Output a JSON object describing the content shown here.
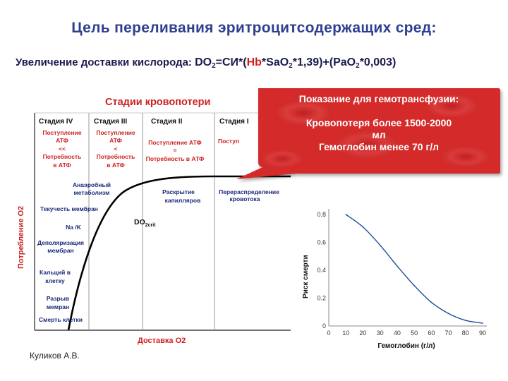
{
  "slide": {
    "title": "Цель переливания эритроцитсодержащих сред:",
    "formula": {
      "prefix": "Увеличение доставки кислорода: ",
      "do": "DO",
      "do_sub": "2",
      "eq1": "=СИ*(",
      "hb": "Hb",
      "sao": "*SaO",
      "sao_sub": "2",
      "mid": "*1,39)+(PaO",
      "pao_sub": "2",
      "tail": "*0,003)"
    },
    "author": "Куликов А.В."
  },
  "left_chart": {
    "title": "Стадии кровопотери",
    "stages": [
      "Стадия IV",
      "Стадия III",
      "Стадия II",
      "Стадия I"
    ],
    "stage_notes": [
      [
        "Поступление",
        "АТФ",
        "<<",
        "Потребность",
        "в АТФ"
      ],
      [
        "Поступление",
        "АТФ",
        "<",
        "Потребность",
        "в АТФ"
      ],
      [
        "Поступление АТФ",
        "=",
        "Потребность в АТФ"
      ],
      [
        "Поступ"
      ]
    ],
    "events_left": [
      [
        "Анаэробный",
        "метаболизм"
      ],
      [
        "Текучесть мембран"
      ],
      [
        "Na /K"
      ],
      [
        "Деполяризация",
        "мембран"
      ],
      [
        "Кальций в",
        "клетку"
      ],
      [
        "Разрыв",
        "мемран"
      ],
      [
        "Смерть клетки"
      ]
    ],
    "events_mid": [
      "Раскрытие",
      "капилляров"
    ],
    "events_right": [
      "Перераспределение",
      "кровотока"
    ],
    "crit_label": "DO",
    "crit_sub": "2crit",
    "ylabel": "Потребление О2",
    "xlabel": "Доставка О2",
    "colors": {
      "accent": "#cc2222",
      "curve": "#000000",
      "divider": "#9a9a9a"
    }
  },
  "callout": {
    "heading": "Показание для гемотрансфузии:",
    "line1": "Кровопотеря более 1500-2000",
    "line2": "мл",
    "line3": "Гемоглобин менее 70 г/л",
    "color": "#d42a2a"
  },
  "chart_data": {
    "type": "line",
    "xlabel": "Гемоглобин (г/л)",
    "ylabel": "Риск смерти",
    "x": [
      0,
      10,
      20,
      30,
      40,
      50,
      60,
      70,
      80,
      90
    ],
    "series": [
      {
        "values": [
          null,
          0.8,
          0.71,
          0.58,
          0.43,
          0.29,
          0.17,
          0.09,
          0.04,
          0.02
        ]
      }
    ],
    "xticks": [
      "0",
      "10",
      "20",
      "30",
      "40",
      "50",
      "60",
      "70",
      "80",
      "90"
    ],
    "yticks": [
      "0",
      "0.2",
      "0.4",
      "0.6",
      "0.8"
    ],
    "xlim": [
      0,
      90
    ],
    "ylim": [
      0,
      0.8
    ],
    "grid": false,
    "color": "#1f4e9a"
  }
}
